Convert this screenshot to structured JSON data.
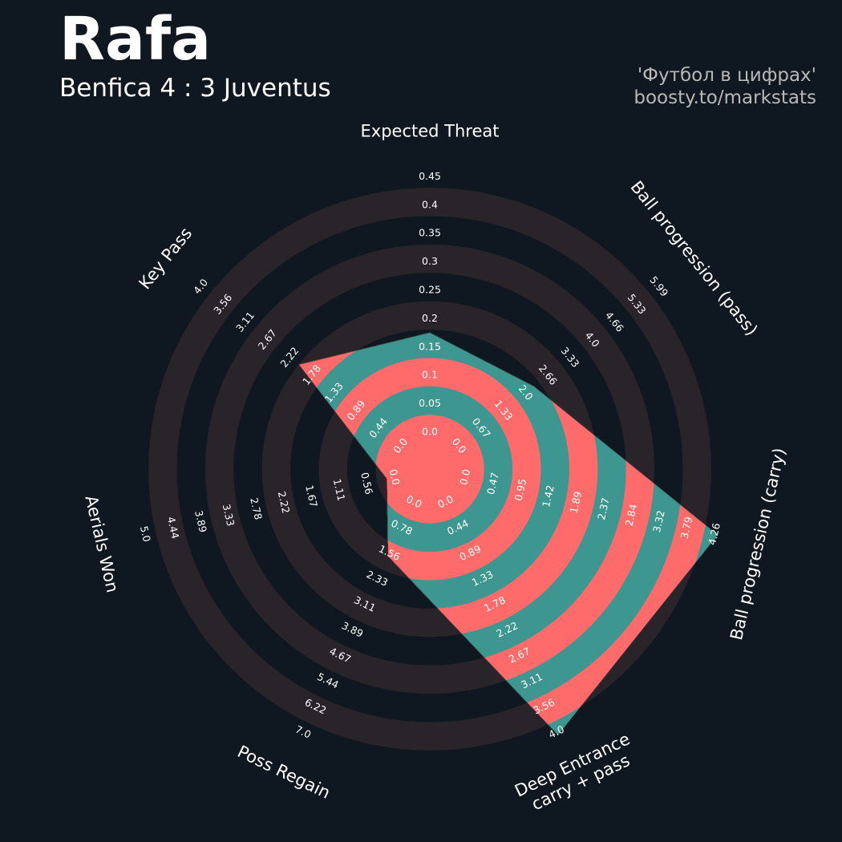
{
  "header": {
    "title": "Rafa",
    "subtitle": "Benfica 4 : 3 Juventus",
    "credit_line1": "'Футбол в цифрах'",
    "credit_line2": "boosty.to/markstats"
  },
  "colors": {
    "background": "#0f1820",
    "ring": "#28242a",
    "player_fill_a": "#ff6b6b",
    "player_fill_b": "#3d9690",
    "text": "#ffffff"
  },
  "chart_data": {
    "type": "radar",
    "params": [
      {
        "label": "Expected Threat",
        "label2": "",
        "value": 0.17,
        "min": 0.0,
        "max": 0.45,
        "ticks": [
          "0.0",
          "0.05",
          "0.1",
          "0.15",
          "0.2",
          "0.25",
          "0.3",
          "0.35",
          "0.4",
          "0.45"
        ]
      },
      {
        "label": "Ball progression (pass)",
        "label2": "",
        "value": 2.18,
        "min": 0.0,
        "max": 5.99,
        "ticks": [
          "0.0",
          "0.67",
          "1.33",
          "2.0",
          "2.66",
          "3.33",
          "4.0",
          "4.66",
          "5.33",
          "5.99"
        ]
      },
      {
        "label": "Ball progression (carry)",
        "label2": "",
        "value": 4.26,
        "min": 0.0,
        "max": 4.26,
        "ticks": [
          "0.0",
          "0.47",
          "0.95",
          "1.42",
          "1.89",
          "2.37",
          "2.84",
          "3.32",
          "3.79",
          "4.26"
        ]
      },
      {
        "label": "Deep Entrance",
        "label2": "carry + pass",
        "value": 4.0,
        "min": 0.0,
        "max": 4.0,
        "ticks": [
          "0.0",
          "0.44",
          "0.89",
          "1.33",
          "1.78",
          "2.22",
          "2.67",
          "3.11",
          "3.56",
          "4.0"
        ]
      },
      {
        "label": "Poss Regain",
        "label2": "",
        "value": 1.55,
        "min": 0.0,
        "max": 7.0,
        "ticks": [
          "0.0",
          "0.78",
          "1.56",
          "2.33",
          "3.11",
          "3.89",
          "4.67",
          "5.44",
          "6.22",
          "7.0"
        ]
      },
      {
        "label": "Aerials Won",
        "label2": "",
        "value": 0.08,
        "min": 0.0,
        "max": 5.0,
        "ticks": [
          "0.0",
          "0.56",
          "1.11",
          "1.67",
          "2.22",
          "2.78",
          "3.33",
          "3.89",
          "4.44",
          "5.0"
        ]
      },
      {
        "label": "Key Pass",
        "label2": "",
        "value": 2.0,
        "min": 0.0,
        "max": 4.0,
        "ticks": [
          "0.0",
          "0.44",
          "0.89",
          "1.33",
          "1.78",
          "2.22",
          "2.67",
          "3.11",
          "3.56",
          "4.0"
        ]
      }
    ]
  }
}
